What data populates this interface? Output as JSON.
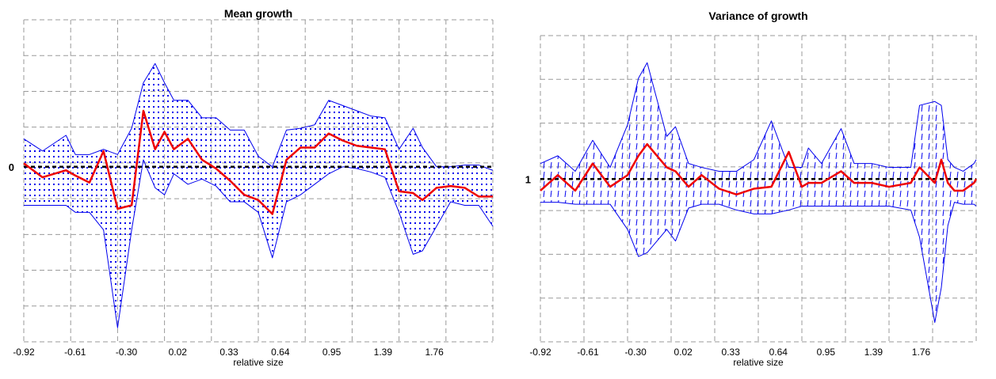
{
  "chart_data": [
    {
      "type": "area",
      "title": "Mean growth",
      "xlabel": "relative size",
      "ylabel": "",
      "x_tick_labels": [
        "-0.92",
        "-0.61",
        "-0.30",
        "0.02",
        "0.33",
        "0.64",
        "0.95",
        "1.39",
        "1.76"
      ],
      "reference_line": {
        "value": 0,
        "label": "0"
      },
      "grid": true,
      "x": [
        0.0,
        0.04,
        0.09,
        0.11,
        0.14,
        0.17,
        0.2,
        0.23,
        0.255,
        0.28,
        0.3,
        0.32,
        0.35,
        0.38,
        0.41,
        0.44,
        0.47,
        0.5,
        0.53,
        0.56,
        0.59,
        0.62,
        0.65,
        0.68,
        0.71,
        0.74,
        0.77,
        0.8,
        0.83,
        0.85,
        0.88,
        0.91,
        0.94,
        0.97,
        1.0
      ],
      "upper": [
        0.8,
        0.45,
        0.9,
        0.35,
        0.35,
        0.5,
        0.35,
        1.1,
        2.4,
        2.95,
        2.4,
        1.9,
        1.9,
        1.4,
        1.4,
        1.05,
        1.05,
        0.3,
        0.0,
        1.05,
        1.1,
        1.2,
        1.9,
        1.75,
        1.6,
        1.45,
        1.4,
        0.5,
        1.1,
        0.55,
        0.0,
        0.0,
        0.05,
        0.05,
        -0.1
      ],
      "lower": [
        -1.1,
        -1.1,
        -1.1,
        -1.3,
        -1.3,
        -1.8,
        -4.6,
        -1.8,
        0.2,
        -0.6,
        -0.8,
        -0.2,
        -0.5,
        -0.35,
        -0.55,
        -1.0,
        -1.0,
        -1.3,
        -2.6,
        -1.0,
        -0.8,
        -0.5,
        -0.2,
        0.0,
        -0.05,
        -0.15,
        -0.3,
        -1.3,
        -2.5,
        -2.4,
        -1.7,
        -1.0,
        -1.1,
        -1.1,
        -1.7
      ],
      "mean": [
        0.1,
        -0.3,
        -0.1,
        -0.25,
        -0.45,
        0.45,
        -1.2,
        -1.1,
        1.6,
        0.5,
        1.0,
        0.5,
        0.8,
        0.2,
        -0.05,
        -0.4,
        -0.8,
        -0.95,
        -1.35,
        0.2,
        0.55,
        0.55,
        0.95,
        0.75,
        0.6,
        0.55,
        0.5,
        -0.7,
        -0.75,
        -0.95,
        -0.6,
        -0.55,
        -0.6,
        -0.85,
        -0.85
      ],
      "ylim": [
        -5.0,
        4.2
      ]
    },
    {
      "type": "area",
      "title": "Variance of growth",
      "xlabel": "relative size",
      "ylabel": "",
      "x_tick_labels": [
        "-0.92",
        "-0.61",
        "-0.30",
        "0.02",
        "0.33",
        "0.64",
        "0.95",
        "1.39",
        "1.76"
      ],
      "reference_line": {
        "value": 1,
        "label": "1"
      },
      "grid": true,
      "x": [
        0.0,
        0.04,
        0.08,
        0.12,
        0.16,
        0.2,
        0.225,
        0.245,
        0.29,
        0.31,
        0.34,
        0.37,
        0.41,
        0.45,
        0.49,
        0.53,
        0.57,
        0.6,
        0.615,
        0.645,
        0.69,
        0.72,
        0.76,
        0.8,
        0.85,
        0.87,
        0.905,
        0.92,
        0.935,
        0.95,
        0.97,
        0.995,
        1.0
      ],
      "upper": [
        1.4,
        1.6,
        1.2,
        2.0,
        1.3,
        2.4,
        3.6,
        4.0,
        2.1,
        2.35,
        1.4,
        1.3,
        1.2,
        1.2,
        1.5,
        2.5,
        1.3,
        1.3,
        1.8,
        1.4,
        2.3,
        1.4,
        1.4,
        1.3,
        1.3,
        2.9,
        3.0,
        2.9,
        1.5,
        1.3,
        1.2,
        1.4,
        1.5
      ],
      "lower": [
        0.4,
        0.4,
        0.35,
        0.35,
        0.35,
        -0.3,
        -1.0,
        -0.9,
        -0.3,
        -0.6,
        0.25,
        0.35,
        0.35,
        0.2,
        0.1,
        0.1,
        0.2,
        0.3,
        0.3,
        0.3,
        0.3,
        0.3,
        0.3,
        0.3,
        0.2,
        -0.5,
        -2.7,
        -1.8,
        -0.2,
        0.4,
        0.35,
        0.35,
        0.3
      ],
      "mean": [
        0.7,
        1.1,
        0.7,
        1.4,
        0.8,
        1.1,
        1.6,
        1.9,
        1.3,
        1.2,
        0.8,
        1.1,
        0.75,
        0.6,
        0.75,
        0.8,
        1.7,
        0.8,
        0.9,
        0.9,
        1.2,
        0.9,
        0.9,
        0.8,
        0.9,
        1.3,
        0.9,
        1.5,
        0.9,
        0.7,
        0.7,
        0.9,
        1.0
      ],
      "ylim": [
        -3.2,
        4.7
      ]
    }
  ],
  "colors": {
    "band": "#0000ee",
    "mean": "#ee0000",
    "reference": "#000000",
    "grid": "#9a9a9a"
  }
}
